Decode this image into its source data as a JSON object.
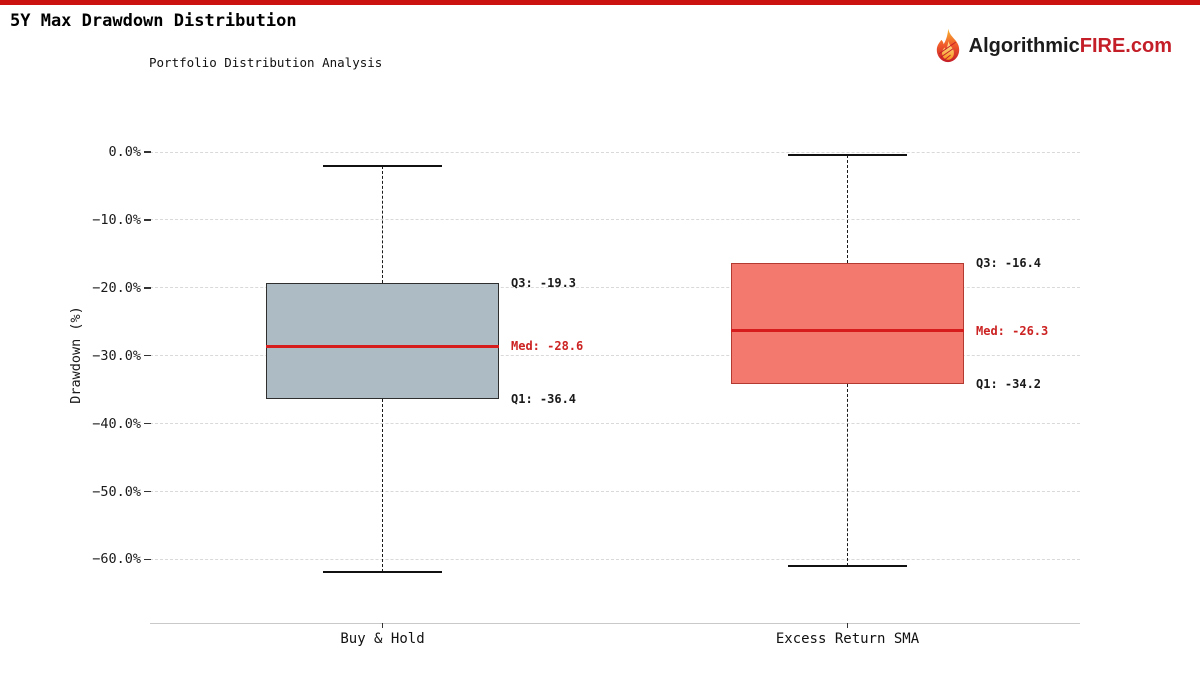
{
  "page": {
    "accent_red": "#cc1111"
  },
  "header": {
    "title": "5Y Max Drawdown Distribution",
    "subtitle": "Portfolio Distribution Analysis",
    "logo": {
      "text_dark": "Algorithmic",
      "text_red": "FIRE.com"
    }
  },
  "chart_data": {
    "type": "boxplot",
    "title": "5Y Max Drawdown Distribution",
    "subtitle": "Portfolio Distribution Analysis",
    "ylabel": "Drawdown (%)",
    "ylim": [
      -66,
      2
    ],
    "grid": "horizontal dashed, light gray",
    "legend": "none",
    "yticks": [
      {
        "value": 0,
        "label": "0.0%"
      },
      {
        "value": -10,
        "label": "−10.0%"
      },
      {
        "value": -20,
        "label": "−20.0%"
      },
      {
        "value": -30,
        "label": "−30.0%"
      },
      {
        "value": -40,
        "label": "−40.0%"
      },
      {
        "value": -50,
        "label": "−50.0%"
      },
      {
        "value": -60,
        "label": "−60.0%"
      }
    ],
    "categories": [
      "Buy & Hold",
      "Excess Return SMA"
    ],
    "annotation_colors": {
      "quartile": "#1a1a1a",
      "median": "#cc2222"
    },
    "series": [
      {
        "name": "Buy & Hold",
        "q1": -36.4,
        "median": -28.6,
        "q3": -19.3,
        "whisker_low": -61.9,
        "whisker_high": -2.0,
        "box_fill": "#adbcc4",
        "box_border": "#2e2e2e",
        "median_color": "#d61c1c",
        "labels": {
          "q3": "Q3: -19.3",
          "med": "Med: -28.6",
          "q1": "Q1: -36.4"
        }
      },
      {
        "name": "Excess Return SMA",
        "q1": -34.2,
        "median": -26.3,
        "q3": -16.4,
        "whisker_low": -61.0,
        "whisker_high": -0.5,
        "box_fill": "#f3796f",
        "box_border": "#b23a30",
        "median_color": "#d61c1c",
        "labels": {
          "q3": "Q3: -16.4",
          "med": "Med: -26.3",
          "q1": "Q1: -34.2"
        }
      }
    ]
  }
}
